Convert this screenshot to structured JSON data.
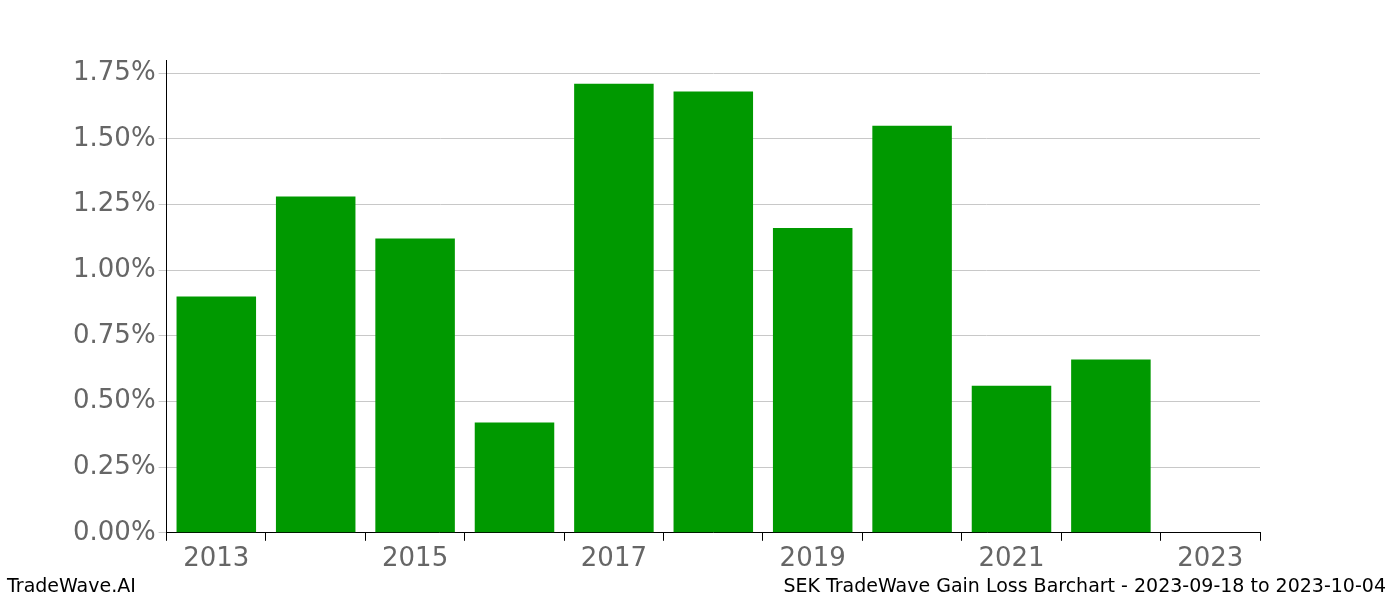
{
  "chart_data": {
    "type": "bar",
    "categories": [
      "2013",
      null,
      "2015",
      null,
      "2017",
      null,
      "2019",
      null,
      "2021",
      null,
      "2023"
    ],
    "values": [
      0.9,
      1.28,
      1.12,
      0.42,
      1.71,
      1.68,
      1.16,
      1.55,
      0.56,
      0.66,
      null
    ],
    "color": "#009900",
    "ylim": [
      0,
      1.8
    ],
    "yticks": [
      {
        "value": 0,
        "label": "0.00%"
      },
      {
        "value": 0.25,
        "label": "0.25%"
      },
      {
        "value": 0.5,
        "label": "0.50%"
      },
      {
        "value": 0.75,
        "label": "0.75%"
      },
      {
        "value": 1.0,
        "label": "1.00%"
      },
      {
        "value": 1.25,
        "label": "1.25%"
      },
      {
        "value": 1.5,
        "label": "1.50%"
      },
      {
        "value": 1.75,
        "label": "1.75%"
      }
    ],
    "grid": true,
    "annotations": [
      "TradeWave.AI",
      "SEK TradeWave Gain Loss Barchart - 2023-09-18 to 2023-10-04"
    ]
  }
}
